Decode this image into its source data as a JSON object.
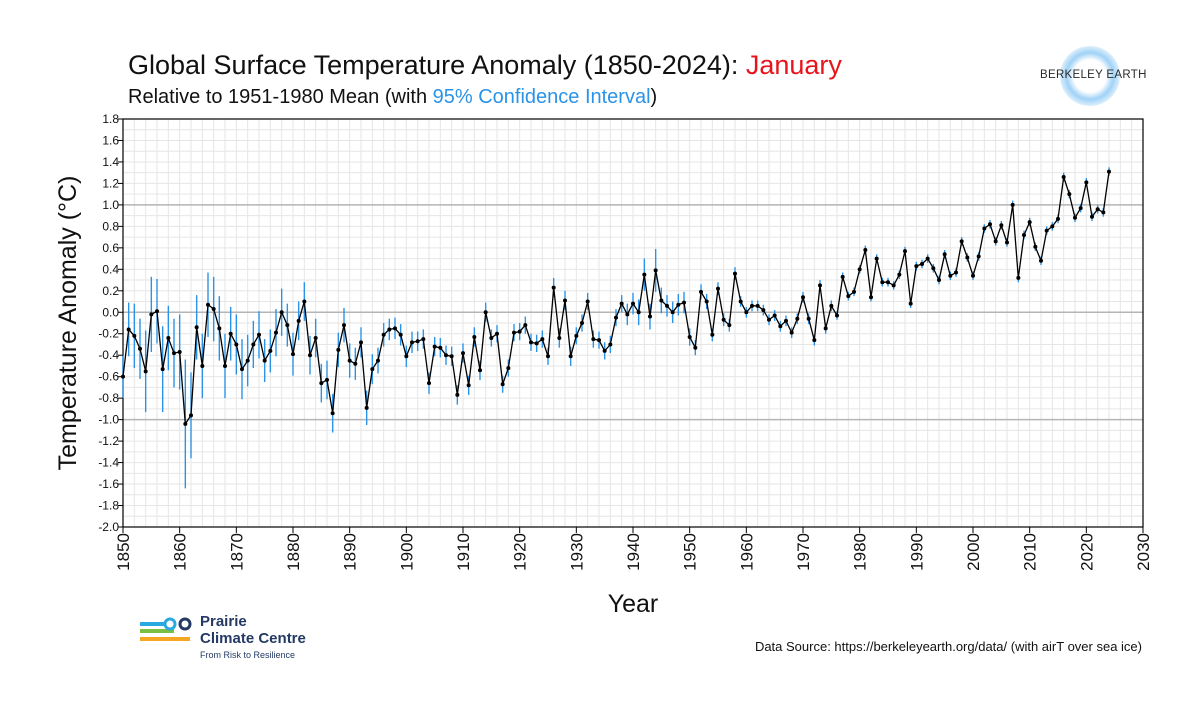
{
  "header": {
    "title_main": "Global Surface Temperature Anomaly (1850-2024): ",
    "title_highlight": "January",
    "subtitle_start": "Relative to 1951-1980 Mean (with ",
    "subtitle_highlight": "95% Confidence Interval",
    "subtitle_end": ")",
    "title_highlight_color": "#e8141b",
    "ci_color": "#2a93e8"
  },
  "berkeley_logo": {
    "text": "BERKELEY EARTH"
  },
  "pcc_logo": {
    "name_line1": "Prairie",
    "name_line2": "Climate Centre",
    "tagline": "From Risk to Resilience"
  },
  "footer": {
    "source": "Data Source: https://berkeleyearth.org/data/ (with airT over sea ice)"
  },
  "chart_data": {
    "type": "line",
    "xlabel": "Year",
    "ylabel": "Temperature Anomaly (°C)",
    "xlim": [
      1850,
      2030
    ],
    "ylim": [
      -2.0,
      1.8
    ],
    "x_ticks": [
      1850,
      1860,
      1870,
      1880,
      1890,
      1900,
      1910,
      1920,
      1930,
      1940,
      1950,
      1960,
      1970,
      1980,
      1990,
      2000,
      2010,
      2020,
      2030
    ],
    "y_ticks": [
      1.8,
      1.6,
      1.4,
      1.2,
      1.0,
      0.8,
      0.6,
      0.4,
      0.2,
      0.0,
      -0.2,
      -0.4,
      -0.6,
      -0.8,
      -1.0,
      -1.2,
      -1.4,
      -1.6,
      -1.8,
      -2.0
    ],
    "y_tick_labels": [
      "1.8",
      "1.6",
      "1.4",
      "1.2",
      "1.0",
      "0.8",
      "0.6",
      "0.4",
      "0.2",
      "0.0",
      "-0.2",
      "-0.4",
      "-0.6",
      "-0.8",
      "-1.0",
      "-1.2",
      "-1.4",
      "-1.6",
      "-1.8",
      "-2.0"
    ],
    "emphasized_y_lines": [
      1.0,
      0.0,
      -1.0
    ],
    "grid": true,
    "series_color": "#000000",
    "ci_color": "#2a93e8",
    "x": [
      1850,
      1851,
      1852,
      1853,
      1854,
      1855,
      1856,
      1857,
      1858,
      1859,
      1860,
      1861,
      1862,
      1863,
      1864,
      1865,
      1866,
      1867,
      1868,
      1869,
      1870,
      1871,
      1872,
      1873,
      1874,
      1875,
      1876,
      1877,
      1878,
      1879,
      1880,
      1881,
      1882,
      1883,
      1884,
      1885,
      1886,
      1887,
      1888,
      1889,
      1890,
      1891,
      1892,
      1893,
      1894,
      1895,
      1896,
      1897,
      1898,
      1899,
      1900,
      1901,
      1902,
      1903,
      1904,
      1905,
      1906,
      1907,
      1908,
      1909,
      1910,
      1911,
      1912,
      1913,
      1914,
      1915,
      1916,
      1917,
      1918,
      1919,
      1920,
      1921,
      1922,
      1923,
      1924,
      1925,
      1926,
      1927,
      1928,
      1929,
      1930,
      1931,
      1932,
      1933,
      1934,
      1935,
      1936,
      1937,
      1938,
      1939,
      1940,
      1941,
      1942,
      1943,
      1944,
      1945,
      1946,
      1947,
      1948,
      1949,
      1950,
      1951,
      1952,
      1953,
      1954,
      1955,
      1956,
      1957,
      1958,
      1959,
      1960,
      1961,
      1962,
      1963,
      1964,
      1965,
      1966,
      1967,
      1968,
      1969,
      1970,
      1971,
      1972,
      1973,
      1974,
      1975,
      1976,
      1977,
      1978,
      1979,
      1980,
      1981,
      1982,
      1983,
      1984,
      1985,
      1986,
      1987,
      1988,
      1989,
      1990,
      1991,
      1992,
      1993,
      1994,
      1995,
      1996,
      1997,
      1998,
      1999,
      2000,
      2001,
      2002,
      2003,
      2004,
      2005,
      2006,
      2007,
      2008,
      2009,
      2010,
      2011,
      2012,
      2013,
      2014,
      2015,
      2016,
      2017,
      2018,
      2019,
      2020,
      2021,
      2022,
      2023,
      2024
    ],
    "y": [
      -0.6,
      -0.16,
      -0.22,
      -0.34,
      -0.55,
      -0.02,
      0.01,
      -0.53,
      -0.24,
      -0.38,
      -0.37,
      -1.04,
      -0.96,
      -0.14,
      -0.5,
      0.07,
      0.03,
      -0.15,
      -0.5,
      -0.2,
      -0.3,
      -0.53,
      -0.45,
      -0.3,
      -0.21,
      -0.45,
      -0.36,
      -0.19,
      0.0,
      -0.12,
      -0.39,
      -0.08,
      0.1,
      -0.4,
      -0.24,
      -0.66,
      -0.63,
      -0.94,
      -0.35,
      -0.12,
      -0.45,
      -0.48,
      -0.28,
      -0.89,
      -0.53,
      -0.45,
      -0.21,
      -0.16,
      -0.15,
      -0.21,
      -0.41,
      -0.28,
      -0.27,
      -0.25,
      -0.66,
      -0.32,
      -0.33,
      -0.4,
      -0.41,
      -0.77,
      -0.38,
      -0.68,
      -0.23,
      -0.54,
      0.0,
      -0.24,
      -0.2,
      -0.67,
      -0.52,
      -0.19,
      -0.18,
      -0.12,
      -0.28,
      -0.29,
      -0.25,
      -0.41,
      0.23,
      -0.24,
      0.11,
      -0.41,
      -0.22,
      -0.1,
      0.1,
      -0.25,
      -0.26,
      -0.36,
      -0.3,
      -0.05,
      0.08,
      -0.02,
      0.08,
      0.0,
      0.35,
      -0.04,
      0.39,
      0.11,
      0.06,
      0.0,
      0.07,
      0.09,
      -0.23,
      -0.33,
      0.19,
      0.1,
      -0.21,
      0.22,
      -0.07,
      -0.12,
      0.36,
      0.1,
      0.0,
      0.06,
      0.06,
      0.02,
      -0.07,
      -0.03,
      -0.13,
      -0.08,
      -0.19,
      -0.06,
      0.14,
      -0.06,
      -0.26,
      0.25,
      -0.15,
      0.06,
      -0.03,
      0.33,
      0.15,
      0.19,
      0.4,
      0.58,
      0.14,
      0.5,
      0.28,
      0.28,
      0.25,
      0.35,
      0.57,
      0.08,
      0.43,
      0.45,
      0.5,
      0.41,
      0.3,
      0.54,
      0.34,
      0.37,
      0.66,
      0.51,
      0.34,
      0.52,
      0.78,
      0.82,
      0.66,
      0.81,
      0.65,
      1.0,
      0.32,
      0.72,
      0.84,
      0.61,
      0.48,
      0.76,
      0.8,
      0.87,
      1.26,
      1.1,
      0.88,
      0.97,
      1.21,
      0.89,
      0.96,
      0.93,
      1.31
    ],
    "ci_half_width": [
      0.2,
      0.25,
      0.3,
      0.28,
      0.38,
      0.35,
      0.3,
      0.4,
      0.3,
      0.32,
      0.35,
      0.6,
      0.4,
      0.3,
      0.3,
      0.3,
      0.3,
      0.3,
      0.3,
      0.25,
      0.28,
      0.28,
      0.24,
      0.22,
      0.22,
      0.2,
      0.2,
      0.22,
      0.22,
      0.2,
      0.2,
      0.18,
      0.18,
      0.18,
      0.18,
      0.18,
      0.18,
      0.18,
      0.16,
      0.16,
      0.16,
      0.15,
      0.14,
      0.16,
      0.14,
      0.12,
      0.11,
      0.1,
      0.1,
      0.1,
      0.1,
      0.1,
      0.09,
      0.09,
      0.1,
      0.09,
      0.09,
      0.09,
      0.09,
      0.09,
      0.09,
      0.09,
      0.09,
      0.09,
      0.09,
      0.08,
      0.08,
      0.08,
      0.08,
      0.08,
      0.08,
      0.08,
      0.08,
      0.08,
      0.08,
      0.08,
      0.09,
      0.09,
      0.09,
      0.09,
      0.08,
      0.08,
      0.08,
      0.08,
      0.08,
      0.08,
      0.08,
      0.08,
      0.08,
      0.1,
      0.1,
      0.12,
      0.15,
      0.12,
      0.2,
      0.12,
      0.1,
      0.1,
      0.1,
      0.1,
      0.08,
      0.07,
      0.07,
      0.07,
      0.06,
      0.06,
      0.06,
      0.06,
      0.06,
      0.05,
      0.05,
      0.05,
      0.05,
      0.05,
      0.05,
      0.05,
      0.05,
      0.05,
      0.05,
      0.05,
      0.05,
      0.05,
      0.05,
      0.05,
      0.05,
      0.05,
      0.04,
      0.04,
      0.04,
      0.04,
      0.04,
      0.04,
      0.04,
      0.04,
      0.04,
      0.04,
      0.04,
      0.04,
      0.04,
      0.04,
      0.04,
      0.04,
      0.04,
      0.04,
      0.04,
      0.04,
      0.04,
      0.04,
      0.04,
      0.04,
      0.04,
      0.04,
      0.04,
      0.04,
      0.04,
      0.04,
      0.04,
      0.04,
      0.04,
      0.04,
      0.04,
      0.04,
      0.04,
      0.04,
      0.04,
      0.04,
      0.04,
      0.04,
      0.04,
      0.04,
      0.04,
      0.04,
      0.04,
      0.04,
      0.04
    ]
  }
}
